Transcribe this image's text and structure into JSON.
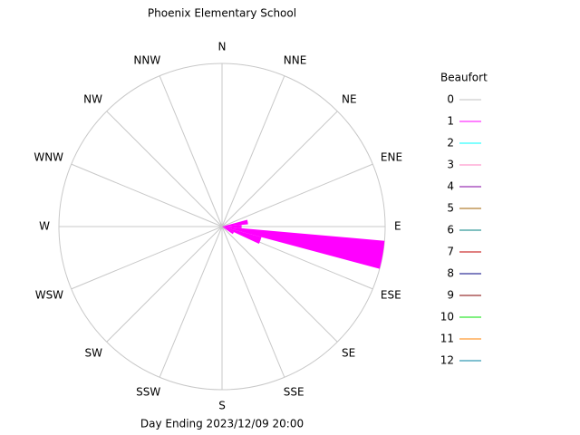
{
  "chart_data": {
    "type": "windrose",
    "title": "Phoenix Elementary School",
    "footer": "Day Ending 2023/12/09 20:00",
    "legend_title": "Beaufort",
    "compass": [
      "N",
      "NNE",
      "NE",
      "ENE",
      "E",
      "ESE",
      "SE",
      "SSE",
      "S",
      "SSW",
      "SW",
      "WSW",
      "W",
      "WNW",
      "NW",
      "NNW"
    ],
    "directions": [
      80,
      90,
      100,
      110,
      120
    ],
    "rlim": [
      0,
      100
    ],
    "series": [
      {
        "name": "0",
        "color": "#c0c0c0",
        "values": [
          0,
          0,
          0,
          0,
          0
        ]
      },
      {
        "name": "1",
        "color": "#ff00ff",
        "values": [
          16,
          12,
          100,
          25,
          8
        ]
      },
      {
        "name": "2",
        "color": "#00ffff",
        "values": [
          0,
          0,
          0,
          0,
          0
        ]
      },
      {
        "name": "3",
        "color": "#ff80c0",
        "values": [
          0,
          0,
          0,
          0,
          0
        ]
      },
      {
        "name": "4",
        "color": "#8000a0",
        "values": [
          0,
          0,
          0,
          0,
          0
        ]
      },
      {
        "name": "5",
        "color": "#a06000",
        "values": [
          0,
          0,
          0,
          0,
          0
        ]
      },
      {
        "name": "6",
        "color": "#008080",
        "values": [
          0,
          0,
          0,
          0,
          0
        ]
      },
      {
        "name": "7",
        "color": "#c00000",
        "values": [
          0,
          0,
          0,
          0,
          0
        ]
      },
      {
        "name": "8",
        "color": "#000080",
        "values": [
          0,
          0,
          0,
          0,
          0
        ]
      },
      {
        "name": "9",
        "color": "#800000",
        "values": [
          0,
          0,
          0,
          0,
          0
        ]
      },
      {
        "name": "10",
        "color": "#00e000",
        "values": [
          0,
          0,
          0,
          0,
          0
        ]
      },
      {
        "name": "11",
        "color": "#ff8000",
        "values": [
          0,
          0,
          0,
          0,
          0
        ]
      },
      {
        "name": "12",
        "color": "#0080a0",
        "values": [
          0,
          0,
          0,
          0,
          0
        ]
      }
    ]
  }
}
